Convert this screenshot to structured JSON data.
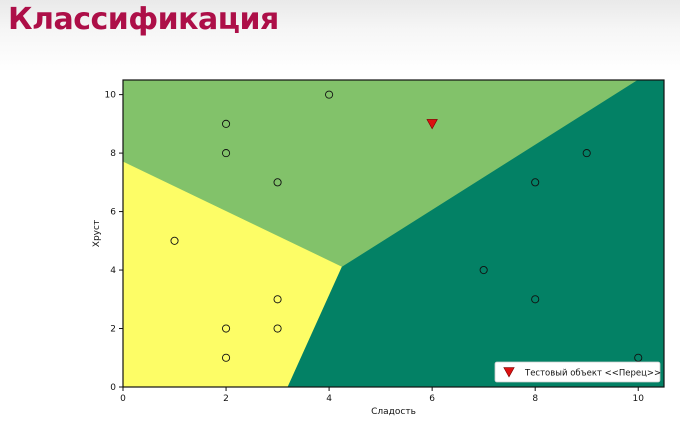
{
  "slide": {
    "title": "Классификация"
  },
  "chart_data": {
    "type": "scatter",
    "xlabel": "Сладость",
    "ylabel": "Хруст",
    "xlim": [
      0,
      10.5
    ],
    "ylim": [
      0,
      10.5
    ],
    "xticks": [
      0,
      2,
      4,
      6,
      8,
      10
    ],
    "yticks": [
      0,
      2,
      4,
      6,
      8,
      10
    ],
    "grid": false,
    "regions": [
      {
        "class": "light-green",
        "color": "#82c26a",
        "polygon": [
          [
            0,
            10.5
          ],
          [
            0,
            7.7
          ],
          [
            4.25,
            4.1
          ],
          [
            10.0,
            10.5
          ]
        ]
      },
      {
        "class": "yellow",
        "color": "#fdfd66",
        "polygon": [
          [
            0,
            7.7
          ],
          [
            4.25,
            4.1
          ],
          [
            3.2,
            0
          ],
          [
            0,
            0
          ]
        ]
      },
      {
        "class": "dark-green",
        "color": "#038165",
        "polygon": [
          [
            4.25,
            4.1
          ],
          [
            3.2,
            0
          ],
          [
            10.5,
            0
          ],
          [
            10.5,
            10.5
          ],
          [
            10.0,
            10.5
          ]
        ]
      }
    ],
    "points": [
      {
        "x": 1,
        "y": 5
      },
      {
        "x": 2,
        "y": 1
      },
      {
        "x": 2,
        "y": 2
      },
      {
        "x": 3,
        "y": 2
      },
      {
        "x": 3,
        "y": 3
      },
      {
        "x": 2,
        "y": 8
      },
      {
        "x": 2,
        "y": 9
      },
      {
        "x": 3,
        "y": 7
      },
      {
        "x": 4,
        "y": 10
      },
      {
        "x": 7,
        "y": 4
      },
      {
        "x": 8,
        "y": 3
      },
      {
        "x": 8,
        "y": 7
      },
      {
        "x": 9,
        "y": 8
      },
      {
        "x": 10,
        "y": 1
      }
    ],
    "test_point": {
      "x": 6,
      "y": 9,
      "label": "Тестовый объект <<Перец>>",
      "color": "#dd1111"
    },
    "legend_position": "lower-right"
  }
}
